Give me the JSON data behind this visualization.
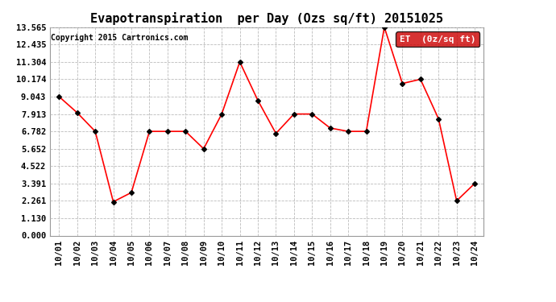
{
  "title": "Evapotranspiration  per Day (Ozs sq/ft) 20151025",
  "copyright": "Copyright 2015 Cartronics.com",
  "legend_label": "ET  (0z/sq ft)",
  "dates": [
    "10/01",
    "10/02",
    "10/03",
    "10/04",
    "10/05",
    "10/06",
    "10/07",
    "10/08",
    "10/09",
    "10/10",
    "10/11",
    "10/12",
    "10/13",
    "10/14",
    "10/15",
    "10/16",
    "10/17",
    "10/18",
    "10/19",
    "10/20",
    "10/21",
    "10/22",
    "10/23",
    "10/24"
  ],
  "values": [
    9.043,
    8.0,
    6.782,
    2.2,
    2.8,
    6.782,
    6.782,
    6.782,
    5.65,
    7.913,
    11.304,
    8.8,
    6.65,
    7.913,
    7.913,
    7.0,
    6.782,
    6.782,
    13.565,
    9.9,
    10.174,
    7.6,
    2.261,
    3.391
  ],
  "yticks": [
    0.0,
    1.13,
    2.261,
    3.391,
    4.522,
    5.652,
    6.782,
    7.913,
    9.043,
    10.174,
    11.304,
    12.435,
    13.565
  ],
  "line_color": "red",
  "marker_color": "black",
  "bg_color": "#ffffff",
  "grid_color": "#bbbbbb",
  "legend_bg": "#cc0000",
  "legend_text_color": "#ffffff",
  "title_fontsize": 11,
  "copyright_fontsize": 7,
  "tick_fontsize": 7.5
}
